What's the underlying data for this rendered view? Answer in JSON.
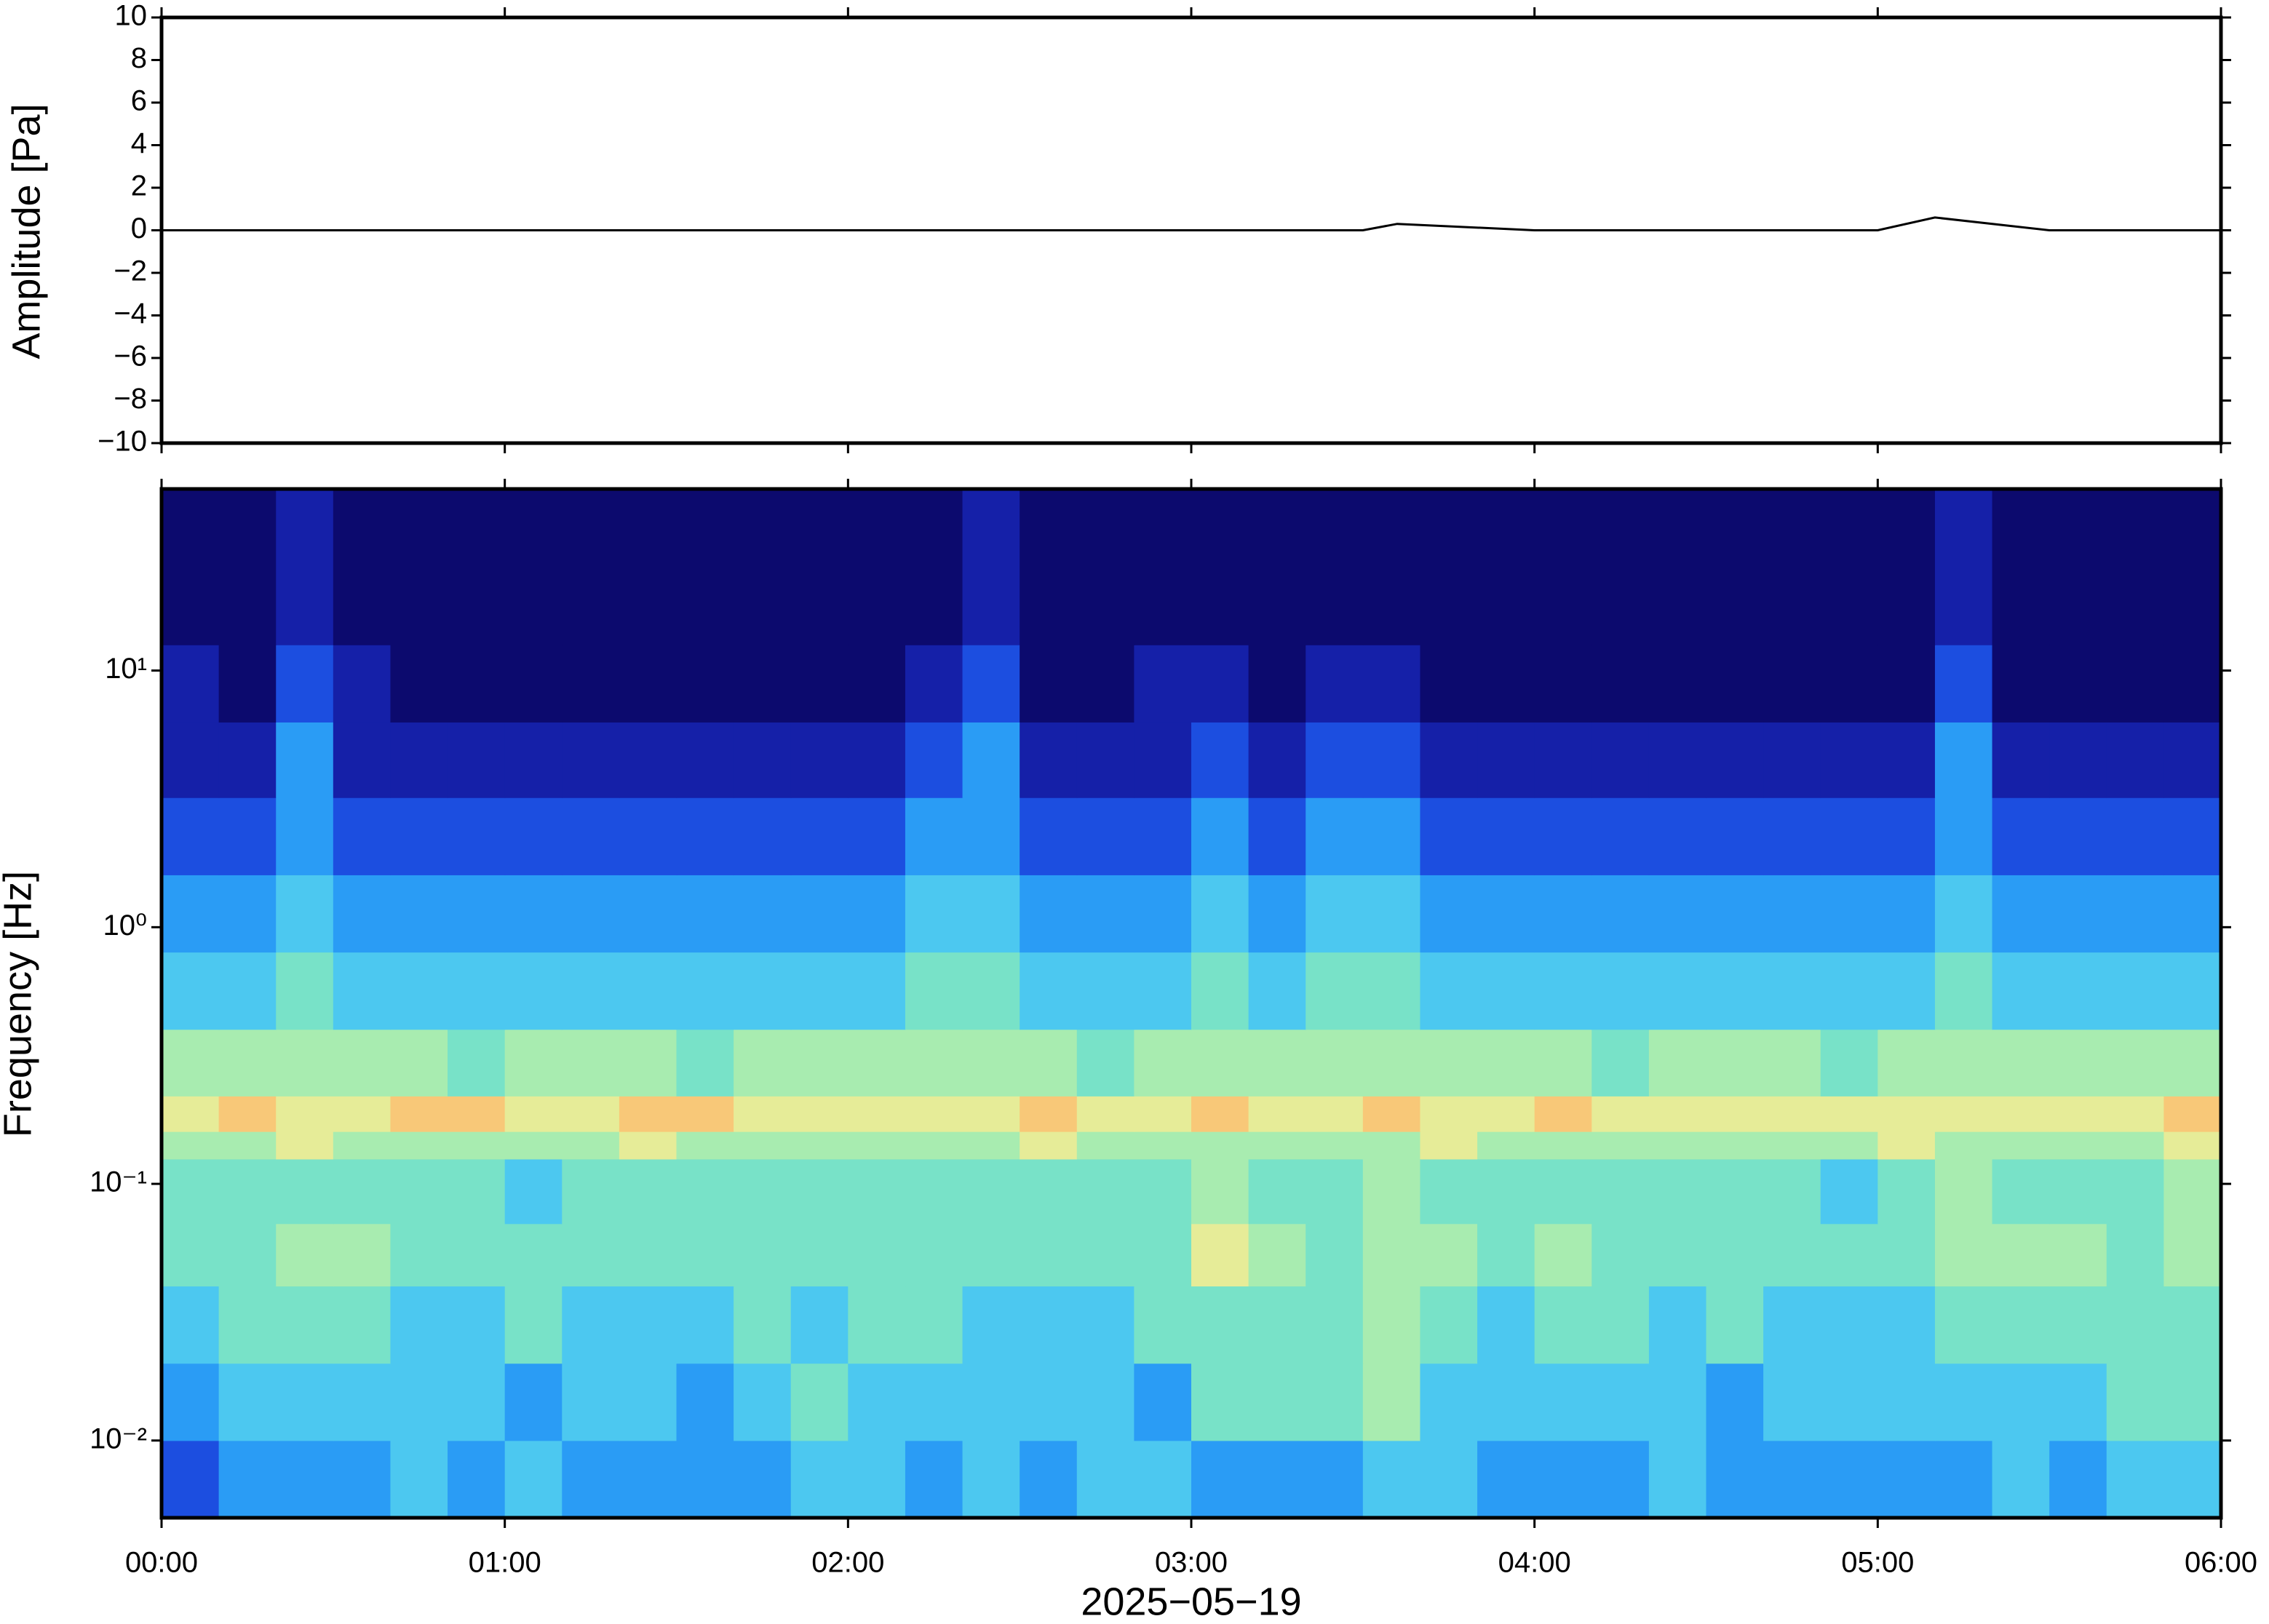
{
  "chart_data": [
    {
      "type": "line",
      "ylabel": "Amplitude [Pa]",
      "x": [
        0,
        30,
        60,
        90,
        120,
        150,
        180,
        210,
        216,
        240,
        270,
        300,
        310,
        330,
        360
      ],
      "series": [
        {
          "color": "#000000",
          "values": [
            0,
            0,
            0,
            0,
            0,
            0,
            0,
            0,
            0.3,
            0,
            0,
            0,
            0.6,
            0,
            0
          ]
        }
      ],
      "xlim": [
        0,
        360
      ],
      "xticks": [
        0,
        60,
        120,
        180,
        240,
        300,
        360
      ],
      "ylim": [
        -10,
        10
      ],
      "yticks": [
        {
          "value": -10,
          "label": "−10"
        },
        {
          "value": -8,
          "label": "−8"
        },
        {
          "value": -6,
          "label": "−6"
        },
        {
          "value": -4,
          "label": "−4"
        },
        {
          "value": -2,
          "label": "−2"
        },
        0,
        2,
        4,
        6,
        8,
        10
      ]
    },
    {
      "type": "heatmap",
      "ylabel": "Frequency [Hz]",
      "xlabel": "2025−05−19",
      "x_edges": [
        0,
        10,
        20,
        30,
        40,
        50,
        60,
        70,
        80,
        90,
        100,
        110,
        120,
        130,
        140,
        150,
        160,
        170,
        180,
        190,
        200,
        210,
        220,
        230,
        240,
        250,
        260,
        270,
        280,
        290,
        300,
        310,
        320,
        330,
        340,
        350,
        360
      ],
      "y_edges": [
        0.005,
        0.01,
        0.02,
        0.04,
        0.07,
        0.125,
        0.16,
        0.22,
        0.4,
        0.8,
        1.6,
        3.2,
        6.3,
        12.6,
        51
      ],
      "z": [
        [
          2,
          3,
          3,
          3,
          4,
          3,
          4,
          3,
          3,
          3,
          3,
          4,
          4,
          3,
          4,
          3,
          4,
          4,
          3,
          3,
          3,
          4,
          4,
          3,
          3,
          3,
          4,
          3,
          3,
          3,
          3,
          3,
          4,
          3,
          4,
          4
        ],
        [
          3,
          4,
          4,
          4,
          4,
          4,
          3,
          4,
          4,
          3,
          4,
          5,
          4,
          4,
          4,
          4,
          4,
          3,
          5,
          5,
          5,
          6,
          4,
          4,
          4,
          4,
          4,
          3,
          4,
          4,
          4,
          4,
          4,
          4,
          5,
          5
        ],
        [
          4,
          5,
          5,
          5,
          4,
          4,
          5,
          4,
          4,
          4,
          5,
          4,
          5,
          5,
          4,
          4,
          4,
          5,
          5,
          5,
          5,
          6,
          5,
          4,
          5,
          5,
          4,
          5,
          4,
          4,
          4,
          5,
          5,
          5,
          5,
          5
        ],
        [
          5,
          5,
          6,
          6,
          5,
          5,
          5,
          5,
          5,
          5,
          5,
          5,
          5,
          5,
          5,
          5,
          5,
          5,
          7,
          6,
          5,
          6,
          6,
          5,
          6,
          5,
          5,
          5,
          5,
          5,
          5,
          6,
          6,
          6,
          5,
          6
        ],
        [
          5,
          5,
          5,
          5,
          5,
          5,
          4,
          5,
          5,
          5,
          5,
          5,
          5,
          5,
          5,
          5,
          5,
          5,
          6,
          5,
          5,
          6,
          5,
          5,
          5,
          5,
          5,
          5,
          5,
          4,
          5,
          6,
          5,
          5,
          5,
          6
        ],
        [
          6,
          6,
          7,
          6,
          6,
          6,
          6,
          6,
          7,
          6,
          6,
          6,
          6,
          6,
          6,
          7,
          6,
          6,
          6,
          6,
          6,
          6,
          7,
          6,
          6,
          6,
          6,
          6,
          6,
          6,
          7,
          6,
          6,
          6,
          6,
          7
        ],
        [
          7,
          8,
          7,
          7,
          8,
          8,
          7,
          7,
          8,
          8,
          7,
          7,
          7,
          7,
          7,
          8,
          7,
          7,
          8,
          7,
          7,
          8,
          7,
          7,
          8,
          7,
          7,
          7,
          7,
          7,
          7,
          7,
          7,
          7,
          7,
          8
        ],
        [
          6,
          6,
          6,
          6,
          6,
          5,
          6,
          6,
          6,
          5,
          6,
          6,
          6,
          6,
          6,
          6,
          5,
          6,
          6,
          6,
          6,
          6,
          6,
          6,
          6,
          5,
          6,
          6,
          6,
          5,
          6,
          6,
          6,
          6,
          6,
          6
        ],
        [
          4,
          4,
          5,
          4,
          4,
          4,
          4,
          4,
          4,
          4,
          4,
          4,
          4,
          5,
          5,
          4,
          4,
          4,
          5,
          4,
          5,
          5,
          4,
          4,
          4,
          4,
          4,
          4,
          4,
          4,
          4,
          5,
          4,
          4,
          4,
          4
        ],
        [
          3,
          3,
          4,
          3,
          3,
          3,
          3,
          3,
          3,
          3,
          3,
          3,
          3,
          4,
          4,
          3,
          3,
          3,
          4,
          3,
          4,
          4,
          3,
          3,
          3,
          3,
          3,
          3,
          3,
          3,
          3,
          4,
          3,
          3,
          3,
          3
        ],
        [
          2,
          2,
          3,
          2,
          2,
          2,
          2,
          2,
          2,
          2,
          2,
          2,
          2,
          3,
          3,
          2,
          2,
          2,
          3,
          2,
          3,
          3,
          2,
          2,
          2,
          2,
          2,
          2,
          2,
          2,
          2,
          3,
          2,
          2,
          2,
          2
        ],
        [
          1,
          1,
          3,
          1,
          1,
          1,
          1,
          1,
          1,
          1,
          1,
          1,
          1,
          2,
          3,
          1,
          1,
          1,
          2,
          1,
          2,
          2,
          1,
          1,
          1,
          1,
          1,
          1,
          1,
          1,
          1,
          3,
          1,
          1,
          1,
          1
        ],
        [
          1,
          0,
          2,
          1,
          0,
          0,
          0,
          0,
          0,
          0,
          0,
          0,
          0,
          1,
          2,
          0,
          0,
          1,
          1,
          0,
          1,
          1,
          0,
          0,
          0,
          0,
          0,
          0,
          0,
          0,
          0,
          2,
          0,
          0,
          0,
          0
        ],
        [
          0,
          0,
          1,
          0,
          0,
          0,
          0,
          0,
          0,
          0,
          0,
          0,
          0,
          0,
          1,
          0,
          0,
          0,
          0,
          0,
          0,
          0,
          0,
          0,
          0,
          0,
          0,
          0,
          0,
          0,
          0,
          1,
          0,
          0,
          0,
          0
        ]
      ],
      "zlim": [
        0,
        10
      ],
      "colormap": [
        "#0c0a6e",
        "#1520a8",
        "#1c4ee0",
        "#2a9cf5",
        "#4cc8f0",
        "#78e2c8",
        "#a8ecb0",
        "#e6ec98",
        "#f8c878",
        "#f49050",
        "#e04030"
      ],
      "xlim": [
        0,
        360
      ],
      "xticks": [
        {
          "value": 0,
          "label": "00:00"
        },
        {
          "value": 60,
          "label": "01:00"
        },
        {
          "value": 120,
          "label": "02:00"
        },
        {
          "value": 180,
          "label": "03:00"
        },
        {
          "value": 240,
          "label": "04:00"
        },
        {
          "value": 300,
          "label": "05:00"
        },
        {
          "value": 360,
          "label": "06:00"
        }
      ],
      "log_y": true,
      "ylim": [
        0.005,
        51
      ],
      "yticks": [
        {
          "value": 0.01,
          "label": "10⁻²"
        },
        {
          "value": 0.1,
          "label": "10⁻¹"
        },
        {
          "value": 1,
          "label": "10⁰"
        },
        {
          "value": 10,
          "label": "10¹"
        }
      ]
    }
  ]
}
